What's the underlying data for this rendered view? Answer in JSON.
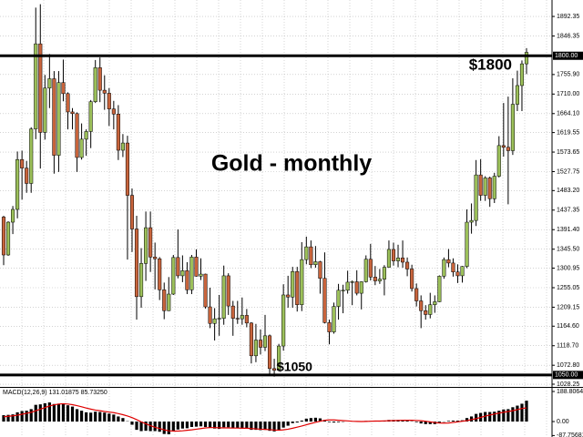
{
  "chart_data": [
    {
      "type": "candlestick",
      "title": "Gold - monthly",
      "up_color": "#9cc05a",
      "down_color": "#c8643c",
      "grid": true,
      "ylim": [
        1024,
        1931
      ],
      "yticks": [
        1892.35,
        1846.35,
        {
          "value": 1755.9,
          "label": "1755.90"
        },
        {
          "value": 1710,
          "label": "1710.00"
        },
        {
          "value": 1664.1,
          "label": "1664.10"
        },
        1619.55,
        1573.65,
        1527.75,
        {
          "value": 1483.2,
          "label": "1483.20"
        },
        1437.35,
        {
          "value": 1391.4,
          "label": "1391.40"
        },
        {
          "value": 1345.5,
          "label": "1345.50"
        },
        1300.95,
        1255.05,
        1209.15,
        {
          "value": 1164.6,
          "label": "1164.60"
        },
        {
          "value": 1118.7,
          "label": "1118.70"
        },
        {
          "value": 1072.8,
          "label": "1072.80"
        },
        1028.25
      ],
      "levels": [
        {
          "value": 1800,
          "label": "$1800",
          "axis_label": "1800.00"
        },
        {
          "value": 1050,
          "label": "$1050",
          "axis_label": "1050.00"
        }
      ],
      "open": [
        1421,
        1332,
        1409,
        1439,
        1556,
        1536,
        1500,
        1628,
        1828,
        1620,
        1724,
        1746,
        1566,
        1737,
        1711,
        1668,
        1664,
        1561,
        1604,
        1622,
        1692,
        1772,
        1719,
        1712,
        1675,
        1663,
        1578,
        1595,
        1472,
        1393,
        1234,
        1312,
        1396,
        1327,
        1323,
        1250,
        1201,
        1240,
        1326,
        1283,
        1295,
        1250,
        1327,
        1282,
        1287,
        1210,
        1171,
        1182,
        1183,
        1283,
        1212,
        1183,
        1182,
        1190,
        1172,
        1095,
        1132,
        1115,
        1142,
        1065,
        1061,
        1118,
        1238,
        1233,
        1293,
        1215,
        1321,
        1351,
        1309,
        1316,
        1277,
        1173,
        1151,
        1211,
        1249,
        1249,
        1268,
        1269,
        1242,
        1269,
        1322,
        1280,
        1271,
        1275,
        1303,
        1345,
        1318,
        1325,
        1315,
        1299,
        1253,
        1224,
        1201,
        1192,
        1215,
        1222,
        1282,
        1321,
        1313,
        1292,
        1283,
        1305,
        1409,
        1413,
        1520,
        1472,
        1513,
        1464,
        1517,
        1589,
        1585,
        1577,
        1686,
        1730,
        1781
      ],
      "high": [
        1424,
        1411,
        1447,
        1575,
        1577,
        1553,
        1632,
        1913,
        1921,
        1755,
        1804,
        1764,
        1764,
        1791,
        1714,
        1677,
        1667,
        1641,
        1627,
        1696,
        1790,
        1796,
        1754,
        1724,
        1694,
        1684,
        1616,
        1612,
        1488,
        1424,
        1348,
        1434,
        1434,
        1361,
        1327,
        1267,
        1280,
        1332,
        1392,
        1331,
        1315,
        1332,
        1345,
        1324,
        1288,
        1255,
        1207,
        1238,
        1307,
        1289,
        1224,
        1224,
        1232,
        1205,
        1174,
        1170,
        1157,
        1191,
        1145,
        1088,
        1123,
        1263,
        1283,
        1304,
        1304,
        1362,
        1375,
        1366,
        1353,
        1318,
        1338,
        1180,
        1220,
        1264,
        1262,
        1295,
        1272,
        1296,
        1270,
        1331,
        1358,
        1306,
        1299,
        1308,
        1366,
        1361,
        1356,
        1366,
        1326,
        1309,
        1265,
        1237,
        1214,
        1243,
        1237,
        1284,
        1326,
        1346,
        1324,
        1310,
        1306,
        1439,
        1453,
        1555,
        1557,
        1517,
        1516,
        1525,
        1611,
        1689,
        1704,
        1747,
        1765,
        1789,
        1818
      ],
      "low": [
        1308,
        1330,
        1381,
        1418,
        1462,
        1478,
        1478,
        1604,
        1535,
        1603,
        1677,
        1523,
        1527,
        1693,
        1627,
        1627,
        1527,
        1556,
        1565,
        1583,
        1689,
        1691,
        1673,
        1635,
        1627,
        1555,
        1562,
        1321,
        1339,
        1180,
        1208,
        1271,
        1292,
        1251,
        1226,
        1181,
        1200,
        1238,
        1277,
        1268,
        1240,
        1240,
        1281,
        1273,
        1206,
        1160,
        1131,
        1142,
        1168,
        1191,
        1142,
        1170,
        1168,
        1162,
        1077,
        1080,
        1098,
        1106,
        1052,
        1046,
        1058,
        1107,
        1208,
        1208,
        1199,
        1200,
        1310,
        1301,
        1302,
        1241,
        1171,
        1122,
        1147,
        1180,
        1195,
        1241,
        1214,
        1237,
        1204,
        1267,
        1272,
        1261,
        1264,
        1237,
        1302,
        1307,
        1303,
        1302,
        1282,
        1246,
        1211,
        1160,
        1180,
        1183,
        1196,
        1221,
        1276,
        1303,
        1281,
        1266,
        1267,
        1301,
        1382,
        1400,
        1459,
        1459,
        1445,
        1454,
        1514,
        1563,
        1451,
        1567,
        1670,
        1670,
        1757
      ],
      "close": [
        1332,
        1409,
        1439,
        1556,
        1536,
        1500,
        1628,
        1828,
        1620,
        1724,
        1746,
        1566,
        1737,
        1711,
        1668,
        1664,
        1561,
        1604,
        1622,
        1692,
        1772,
        1719,
        1712,
        1675,
        1663,
        1578,
        1595,
        1472,
        1393,
        1234,
        1312,
        1396,
        1327,
        1323,
        1250,
        1201,
        1240,
        1326,
        1283,
        1295,
        1250,
        1327,
        1282,
        1287,
        1210,
        1171,
        1182,
        1183,
        1283,
        1212,
        1183,
        1182,
        1190,
        1172,
        1095,
        1132,
        1115,
        1142,
        1065,
        1061,
        1118,
        1238,
        1233,
        1293,
        1215,
        1321,
        1351,
        1309,
        1316,
        1277,
        1173,
        1151,
        1211,
        1249,
        1249,
        1268,
        1269,
        1242,
        1269,
        1322,
        1280,
        1271,
        1275,
        1303,
        1345,
        1318,
        1325,
        1315,
        1299,
        1253,
        1224,
        1201,
        1192,
        1215,
        1222,
        1282,
        1321,
        1313,
        1292,
        1283,
        1305,
        1409,
        1413,
        1520,
        1472,
        1513,
        1464,
        1517,
        1589,
        1585,
        1577,
        1686,
        1730,
        1781,
        1808
      ]
    },
    {
      "type": "macd",
      "title": "MACD(12,26,9) 131.01875 85.73250",
      "macd_color": "#000000",
      "signal_color": "#e00000",
      "ylim": [
        -97,
        206
      ],
      "yticks": [
        188.80648,
        {
          "value": 0,
          "label": "0.00"
        },
        -87.75681
      ],
      "values": [
        40,
        42,
        45,
        58,
        66,
        68,
        78,
        105,
        108,
        115,
        120,
        110,
        112,
        110,
        102,
        94,
        78,
        68,
        58,
        56,
        62,
        60,
        56,
        50,
        44,
        32,
        22,
        2,
        -20,
        -52,
        -60,
        -58,
        -60,
        -60,
        -64,
        -78,
        -80,
        -58,
        -50,
        -44,
        -42,
        -34,
        -32,
        -30,
        -34,
        -40,
        -44,
        -46,
        -36,
        -36,
        -40,
        -42,
        -42,
        -44,
        -52,
        -52,
        -54,
        -52,
        -58,
        -62,
        -56,
        -38,
        -26,
        -10,
        -6,
        6,
        18,
        22,
        24,
        20,
        8,
        -4,
        -6,
        -4,
        -2,
        0,
        2,
        0,
        -2,
        4,
        4,
        4,
        4,
        6,
        10,
        10,
        10,
        10,
        8,
        2,
        -4,
        -12,
        -16,
        -16,
        -16,
        -10,
        -2,
        4,
        6,
        6,
        8,
        22,
        32,
        48,
        54,
        60,
        60,
        62,
        68,
        76,
        78,
        90,
        100,
        112,
        131.01875
      ],
      "signal": [
        30,
        33,
        36,
        40,
        46,
        52,
        58,
        68,
        78,
        88,
        98,
        105,
        110,
        112,
        110,
        106,
        100,
        93,
        85,
        78,
        72,
        68,
        63,
        60,
        56,
        50,
        43,
        35,
        25,
        12,
        -2,
        -14,
        -26,
        -36,
        -44,
        -52,
        -58,
        -60,
        -60,
        -58,
        -55,
        -52,
        -48,
        -44,
        -40,
        -38,
        -38,
        -39,
        -40,
        -40,
        -41,
        -41,
        -42,
        -42,
        -44,
        -46,
        -48,
        -49,
        -51,
        -53,
        -54,
        -52,
        -48,
        -42,
        -35,
        -28,
        -20,
        -12,
        -5,
        2,
        8,
        10,
        10,
        8,
        6,
        4,
        2,
        1,
        0,
        1,
        2,
        3,
        3,
        4,
        5,
        6,
        7,
        8,
        8,
        8,
        7,
        5,
        2,
        -2,
        -6,
        -9,
        -10,
        -9,
        -6,
        -2,
        2,
        6,
        12,
        18,
        26,
        34,
        41,
        47,
        53,
        58,
        63,
        68,
        75,
        82,
        85.7325
      ]
    }
  ]
}
